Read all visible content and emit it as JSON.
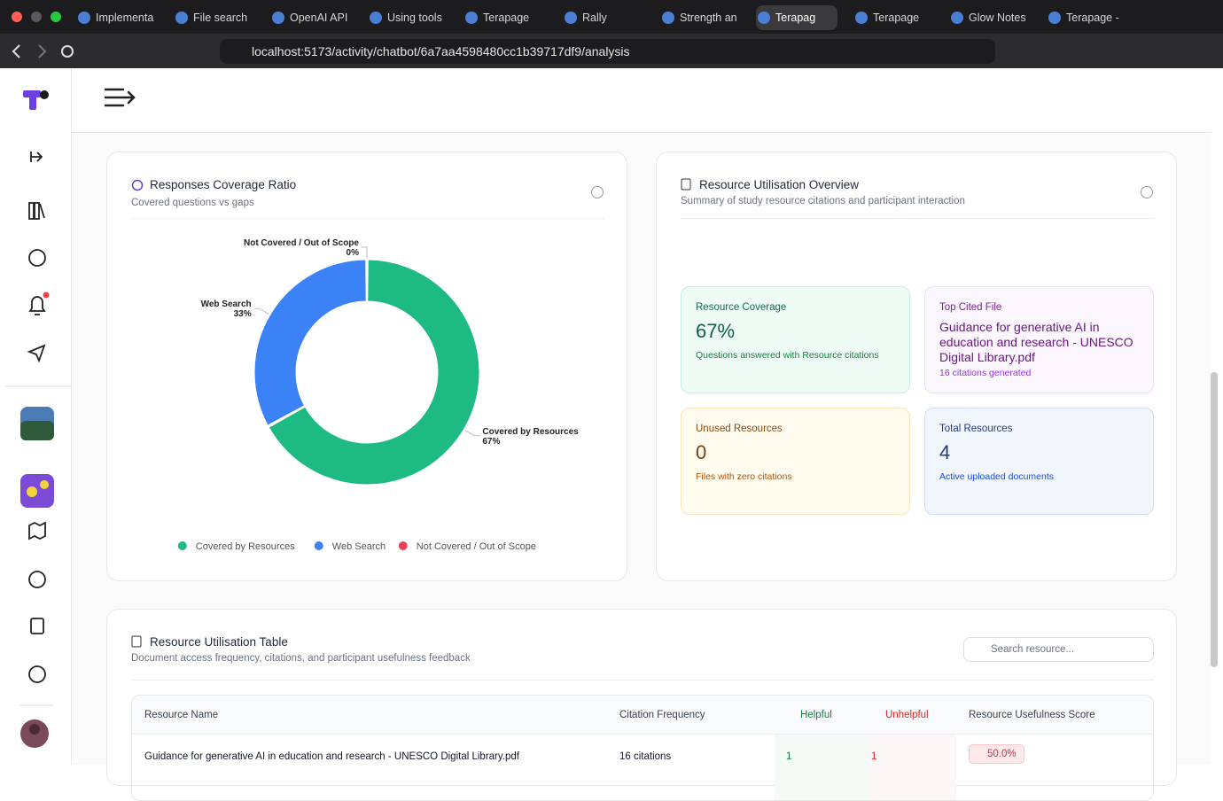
{
  "browser": {
    "tabs": [
      "Implementa",
      "File search",
      "OpenAI API",
      "Using tools",
      "Terapage",
      "Rally",
      "Strength an",
      "Terapag",
      "Terapage",
      "Glow Notes",
      "Terapage -"
    ],
    "url": "localhost:5173/activity/chatbot/6a7aa4598480cc1b39717df9/analysis"
  },
  "chart_data": {
    "type": "pie",
    "title": "Responses Coverage Ratio",
    "subtitle": "Covered questions vs gaps",
    "categories": [
      "Covered by Resources",
      "Web Search",
      "Not Covered / Out of Scope"
    ],
    "values": [
      67,
      33,
      0
    ],
    "value_labels": [
      "67%",
      "33%",
      "0%"
    ],
    "colors": [
      "#1dba84",
      "#3b82f6",
      "#e8435a"
    ],
    "donut": true,
    "legend": "bottom"
  },
  "overview": {
    "title": "Resource Utilisation Overview",
    "subtitle": "Summary of study resource citations and participant interaction",
    "stats": [
      {
        "label": "Resource Coverage",
        "value": "67%",
        "note": "Questions answered with Resource citations"
      },
      {
        "label": "Top Cited File",
        "value": "Guidance for generative AI in education and research - UNESCO Digital Library.pdf",
        "note": "16 citations generated"
      },
      {
        "label": "Unused Resources",
        "value": "0",
        "note": "Files with zero citations"
      },
      {
        "label": "Total Resources",
        "value": "4",
        "note": "Active uploaded documents"
      }
    ]
  },
  "table_section": {
    "title": "Resource Utilisation Table",
    "subtitle": "Document access frequency, citations, and participant usefulness feedback",
    "search_placeholder": "Search resource...",
    "columns": [
      "Resource Name",
      "Citation Frequency",
      "Helpful",
      "Unhelpful",
      "Resource Usefulness Score"
    ],
    "rows": [
      [
        "Guidance for generative AI in education and research - UNESCO Digital Library.pdf",
        "16 citations",
        "1",
        "1",
        "50.0%"
      ]
    ]
  }
}
